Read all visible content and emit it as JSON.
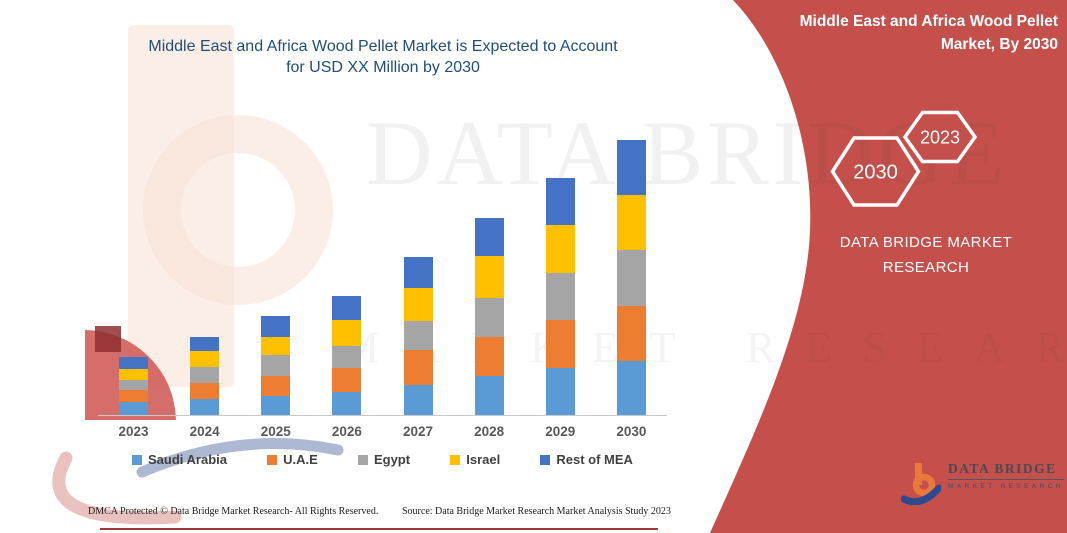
{
  "colors": {
    "background": "#ffffff",
    "red_shape": "#c5504b",
    "title_text": "#1f4e79",
    "right_panel_text": "#ffffff",
    "axis_line": "#c9c9c9",
    "tick_label": "#595959",
    "legend_text": "#404040",
    "footer_text": "#1c1c1c",
    "bottom_rule": "#9e3a38",
    "saudi_arabia": "#5b9bd5",
    "uae": "#ed7d31",
    "egypt": "#a5a5a5",
    "israel": "#ffc000",
    "rest_of_mea": "#4472c4"
  },
  "title": {
    "line1": "Middle East and Africa Wood Pellet Market is Expected to Account",
    "line2": "for USD XX Million by 2030"
  },
  "right_panel": {
    "heading_line1": "Middle East and Africa Wood Pellet",
    "heading_line2": "Market, By 2030",
    "hexagon_back_label": "2030",
    "hexagon_front_label": "2023",
    "brand_line1": "DATA BRIDGE MARKET",
    "brand_line2": "RESEARCH"
  },
  "chart_data": {
    "type": "bar",
    "stacked": true,
    "title": "Middle East and Africa Wood Pellet Market is Expected to Account for USD XX Million by 2030",
    "xlabel": "",
    "ylabel": "",
    "value_axis_visible": false,
    "value_unit": "relative height (USD value shown as XX placeholder)",
    "grid": false,
    "legend_position": "bottom",
    "categories": [
      "2023",
      "2024",
      "2025",
      "2026",
      "2027",
      "2028",
      "2029",
      "2030"
    ],
    "series": [
      {
        "name": "Saudi Arabia",
        "color": "#5b9bd5",
        "values": [
          13,
          16,
          19,
          23,
          30,
          39,
          47,
          54
        ]
      },
      {
        "name": "U.A.E",
        "color": "#ed7d31",
        "values": [
          12,
          16,
          20,
          24,
          35,
          39,
          48,
          55
        ]
      },
      {
        "name": "Egypt",
        "color": "#a5a5a5",
        "values": [
          10,
          16,
          21,
          22,
          29,
          39,
          47,
          56
        ]
      },
      {
        "name": "Israel",
        "color": "#ffc000",
        "values": [
          11,
          16,
          18,
          26,
          33,
          42,
          48,
          55
        ]
      },
      {
        "name": "Rest of MEA",
        "color": "#4472c4",
        "values": [
          12,
          14,
          21,
          24,
          31,
          38,
          47,
          55
        ]
      }
    ],
    "totals": [
      58,
      78,
      99,
      119,
      158,
      197,
      237,
      275
    ]
  },
  "watermark": {
    "line1": "DATA BRIDGE",
    "line2": "MARKET RESEARCH"
  },
  "footer": {
    "left": "DMCA Protected © Data Bridge Market Research-  All Rights Reserved.",
    "right": "Source: Data Bridge Market Research  Market Analysis Study 2023"
  },
  "logo": {
    "brand": "DATA BRIDGE",
    "tagline": "MARKET RESEARCH"
  }
}
